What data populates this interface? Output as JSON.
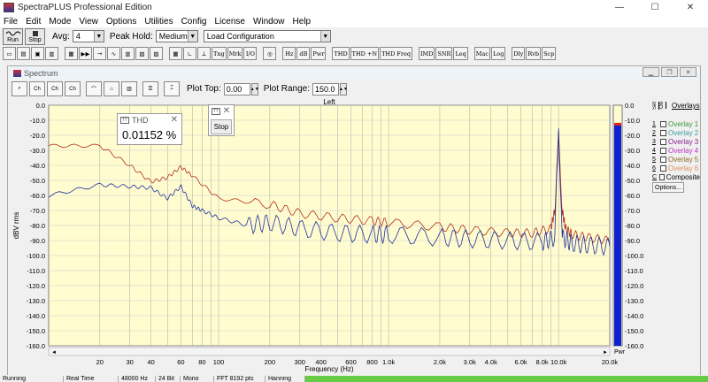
{
  "window": {
    "title": "SpectraPLUS Professional Edition",
    "btn_min": "—",
    "btn_max": "☐",
    "btn_close": "✕"
  },
  "menu": [
    "File",
    "Edit",
    "Mode",
    "View",
    "Options",
    "Utilities",
    "Config",
    "License",
    "Window",
    "Help"
  ],
  "toolbar": {
    "run": "Run",
    "stop": "Stop",
    "avg_label": "Avg:",
    "avg_value": "4",
    "peak_hold_label": "Peak Hold:",
    "peak_hold_value": "Medium",
    "config_value": "Load Configuration"
  },
  "toolbar2": [
    "Hz",
    "dB",
    "Pwr",
    "THD",
    "THD +N",
    "THD Freq",
    "IMD",
    "SNR",
    "Leq",
    "Mac",
    "Log",
    "Dly",
    "Rvb",
    "Scp"
  ],
  "spectrum": {
    "title": "Spectrum",
    "plot_top_label": "Plot Top:",
    "plot_top_value": "0.00",
    "plot_range_label": "Plot Range:",
    "plot_range_value": "150.0"
  },
  "thd_popup": {
    "title": "THD",
    "value": "0.01152 %"
  },
  "stop_popup": {
    "button": "Stop"
  },
  "overlays": {
    "title": "Overlays",
    "set_label": "Set",
    "on_label": "On",
    "items": [
      {
        "num": "1",
        "label": "Overlay 1",
        "color": "#3a9a3a"
      },
      {
        "num": "2",
        "label": "Overlay 2",
        "color": "#3aa0a0"
      },
      {
        "num": "3",
        "label": "Overlay 3",
        "color": "#8a2090"
      },
      {
        "num": "4",
        "label": "Overlay 4",
        "color": "#c030c0"
      },
      {
        "num": "5",
        "label": "Overlay 5",
        "color": "#8a6a20"
      },
      {
        "num": "6",
        "label": "Overlay 6",
        "color": "#e09060"
      }
    ],
    "composite": "Composite",
    "options_button": "Options..."
  },
  "status": [
    "Running",
    "Real Time",
    "48000 Hz",
    "24 Bit",
    "Mono",
    "FFT 8192 pts",
    "Hanning"
  ],
  "chart_data": {
    "type": "line",
    "title": "Left",
    "xlabel": "Frequency (Hz)",
    "ylabel": "dBV rms",
    "x_scale": "log",
    "xlim": [
      10,
      20000
    ],
    "ylim": [
      -160,
      0
    ],
    "x_ticks": [
      "20",
      "30",
      "40",
      "60",
      "80",
      "100",
      "200",
      "300",
      "400",
      "600",
      "800",
      "1.0k",
      "2.0k",
      "3.0k",
      "4.0k",
      "6.0k",
      "8.0k",
      "10.0k",
      "20.0k"
    ],
    "x_tick_values": [
      20,
      30,
      40,
      60,
      80,
      100,
      200,
      300,
      400,
      600,
      800,
      1000,
      2000,
      3000,
      4000,
      6000,
      8000,
      10000,
      20000
    ],
    "y_ticks": [
      "0.0",
      "-10.0",
      "-20.0",
      "-30.0",
      "-40.0",
      "-50.0",
      "-60.0",
      "-70.0",
      "-80.0",
      "-90.0",
      "-100.0",
      "-110.0",
      "-120.0",
      "-130.0",
      "-140.0",
      "-150.0",
      "-160.0"
    ],
    "grid": true,
    "series": [
      {
        "color": "#b03020",
        "x": [
          10,
          20,
          30,
          40,
          50,
          60,
          70,
          100,
          200,
          300,
          500,
          800,
          1000,
          2000,
          3000,
          5000,
          7000,
          9000,
          9500,
          10000,
          10500,
          11000,
          12000,
          15000,
          20000
        ],
        "y": [
          -27,
          -27,
          -40,
          -51,
          -48,
          -41,
          -47,
          -62,
          -66,
          -72,
          -75,
          -77,
          -78,
          -81,
          -83,
          -85,
          -85,
          -82,
          -70,
          -20,
          -70,
          -82,
          -86,
          -88,
          -90
        ]
      },
      {
        "color": "#2030a0",
        "x": [
          10,
          20,
          30,
          40,
          50,
          60,
          70,
          80,
          100,
          150,
          200,
          300,
          500,
          800,
          1000,
          2000,
          3000,
          5000,
          8000,
          9500,
          10000,
          10500,
          12000,
          15000,
          20000
        ],
        "y": [
          -60,
          -53,
          -54,
          -55,
          -62,
          -54,
          -67,
          -70,
          -75,
          -80,
          -78,
          -82,
          -85,
          -86,
          -86,
          -88,
          -89,
          -90,
          -91,
          -88,
          -15,
          -88,
          -92,
          -93,
          -94
        ]
      }
    ],
    "level_meter": {
      "ticks": [
        "0.0",
        "-10.0",
        "-20.0",
        "-30.0",
        "-40.0",
        "-50.0",
        "-60.0",
        "-70.0",
        "-80.0",
        "-90.0",
        "-100.0",
        "-110.0",
        "-120.0",
        "-130.0",
        "-140.0",
        "-150.0",
        "-160.0"
      ],
      "label": "Pwr",
      "level_db": -13.5
    }
  }
}
